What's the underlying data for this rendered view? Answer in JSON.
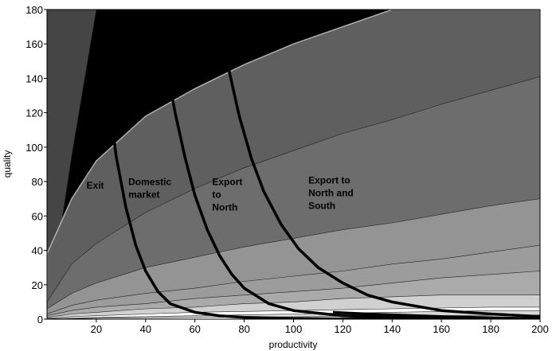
{
  "chart_data": {
    "type": "area",
    "xlabel": "productivity",
    "ylabel": "quality",
    "xlim": [
      0,
      200
    ],
    "ylim": [
      0,
      180
    ],
    "xticks": [
      20,
      40,
      60,
      80,
      100,
      120,
      140,
      160,
      180,
      200
    ],
    "yticks": [
      0,
      20,
      40,
      60,
      80,
      100,
      120,
      140,
      160,
      180
    ],
    "grid": false,
    "region_labels": [
      {
        "lines": [
          "Exit"
        ],
        "x": 16,
        "y": 76
      },
      {
        "lines": [
          "Domestic",
          "market"
        ],
        "x": 33,
        "y": 78
      },
      {
        "lines": [
          "Export",
          "to",
          "North"
        ],
        "x": 67,
        "y": 78
      },
      {
        "lines": [
          "Export to",
          "North and",
          "South"
        ],
        "x": 106,
        "y": 79
      }
    ],
    "shaded_bands": [
      {
        "boundary_x": [
          0,
          10,
          20,
          40,
          60,
          80,
          100,
          120,
          140,
          160,
          180,
          200
        ],
        "boundary_y": [
          0,
          95,
          180,
          180,
          180,
          180,
          180,
          180,
          180,
          180,
          180,
          180
        ],
        "fill": "#000000"
      },
      {
        "boundary_x": [
          0,
          10,
          20,
          40,
          60,
          80,
          100,
          120,
          140,
          160,
          180,
          200
        ],
        "boundary_y": [
          38,
          70,
          92,
          118,
          134,
          148,
          160,
          170,
          180,
          180,
          180,
          180
        ],
        "fill": "#5f5f5f"
      },
      {
        "boundary_x": [
          0,
          10,
          20,
          40,
          60,
          80,
          100,
          120,
          140,
          160,
          180,
          200
        ],
        "boundary_y": [
          10,
          32,
          44,
          62,
          76,
          88,
          98,
          108,
          116,
          125,
          133,
          141
        ],
        "fill": "#6d6d6d"
      },
      {
        "boundary_x": [
          0,
          10,
          20,
          40,
          60,
          80,
          100,
          120,
          140,
          160,
          180,
          200
        ],
        "boundary_y": [
          6,
          15,
          21,
          30,
          36,
          42,
          47,
          52,
          56,
          61,
          66,
          70
        ],
        "fill": "#949494"
      },
      {
        "boundary_x": [
          0,
          10,
          20,
          40,
          60,
          80,
          100,
          120,
          140,
          160,
          180,
          200
        ],
        "boundary_y": [
          3,
          8,
          11,
          15,
          18,
          22,
          25,
          28,
          32,
          35,
          39,
          43
        ],
        "fill": "#9c9c9c"
      },
      {
        "boundary_x": [
          0,
          10,
          20,
          40,
          60,
          80,
          100,
          120,
          140,
          160,
          180,
          200
        ],
        "boundary_y": [
          2,
          5,
          7,
          9,
          12,
          14,
          16,
          18,
          21,
          24,
          26,
          28
        ],
        "fill": "#aaaaaa"
      },
      {
        "boundary_x": [
          0,
          10,
          20,
          40,
          60,
          80,
          100,
          120,
          140,
          160,
          180,
          200
        ],
        "boundary_y": [
          1,
          3,
          4,
          6,
          7,
          9,
          10,
          12,
          13,
          14,
          14,
          14
        ],
        "fill": "#d0d0d0"
      },
      {
        "boundary_x": [
          0,
          10,
          20,
          40,
          60,
          80,
          100,
          120,
          140,
          160,
          180,
          200
        ],
        "boundary_y": [
          0.5,
          1.5,
          2,
          3,
          4,
          4.5,
          5,
          5.5,
          6,
          6.5,
          7,
          7
        ],
        "fill": "#ffffff"
      },
      {
        "boundary_x": [
          0,
          10,
          20,
          40,
          60,
          80,
          100,
          120,
          140,
          160,
          180,
          200
        ],
        "boundary_y": [
          0.2,
          0.6,
          1,
          1.5,
          2,
          2.5,
          3,
          3.5,
          4,
          4.5,
          5,
          5
        ],
        "fill": "#d8d8d8"
      },
      {
        "boundary_x": [
          0,
          10,
          20,
          40,
          60,
          80,
          100,
          120,
          140,
          160,
          180,
          200
        ],
        "boundary_y": [
          0.1,
          0.3,
          0.5,
          0.8,
          1,
          1.2,
          1.4,
          1.6,
          1.8,
          2,
          2.2,
          2.4
        ],
        "fill": "#ffffff"
      }
    ],
    "curves": [
      {
        "x": [
          22,
          25,
          28,
          32,
          36,
          40,
          45,
          50,
          60,
          70,
          80,
          100,
          120,
          150
        ],
        "y": [
          180,
          130,
          95,
          65,
          43,
          28,
          16,
          9,
          4,
          2,
          1,
          0.4,
          0.1,
          0
        ]
      },
      {
        "x": [
          45,
          48,
          52,
          56,
          60,
          65,
          70,
          75,
          80,
          90,
          100,
          120,
          150,
          200
        ],
        "y": [
          180,
          150,
          120,
          94,
          72,
          52,
          37,
          26,
          18,
          9,
          5,
          2,
          0.6,
          0
        ]
      },
      {
        "x": [
          69,
          73,
          78,
          83,
          88,
          95,
          102,
          110,
          120,
          130,
          140,
          160,
          180,
          200
        ],
        "y": [
          180,
          150,
          118,
          93,
          74,
          55,
          41,
          30,
          21,
          14,
          10,
          5,
          3,
          1.5
        ]
      },
      {
        "x": [
          116,
          122,
          130,
          140,
          150,
          160,
          170,
          180,
          190,
          200
        ],
        "y": [
          4,
          3.5,
          3,
          2.5,
          2,
          1.5,
          1.1,
          0.8,
          0.5,
          0.3
        ]
      }
    ]
  }
}
